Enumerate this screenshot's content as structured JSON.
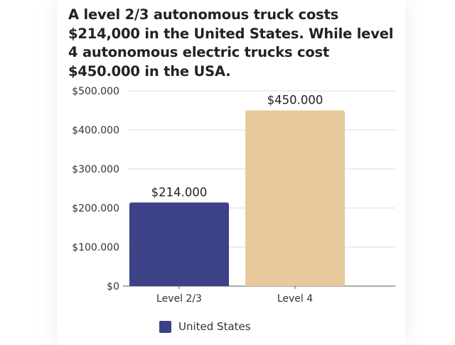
{
  "chart_data": {
    "type": "bar",
    "title": "A level 2/3 autonomous truck costs $214,000 in the United States. While level 4 autonomous electric trucks cost $450.000 in the USA.",
    "xlabel": "",
    "ylabel": "",
    "categories": [
      "Level 2/3",
      "Level 4"
    ],
    "series": [
      {
        "name": "United States",
        "values": [
          214000,
          450000
        ]
      }
    ],
    "data_labels": [
      "$214.000",
      "$450.000"
    ],
    "bar_colors": [
      "#3b4285",
      "#e8c99c"
    ],
    "ylim": [
      0,
      500000
    ],
    "y_ticks": [
      0,
      100000,
      200000,
      300000,
      400000,
      500000
    ],
    "y_tick_labels": [
      "$0",
      "$100.000",
      "$200.000",
      "$300.000",
      "$400.000",
      "$500.000"
    ],
    "grid": true,
    "legend_position": "bottom-center",
    "legend_color": "#3b4285"
  }
}
